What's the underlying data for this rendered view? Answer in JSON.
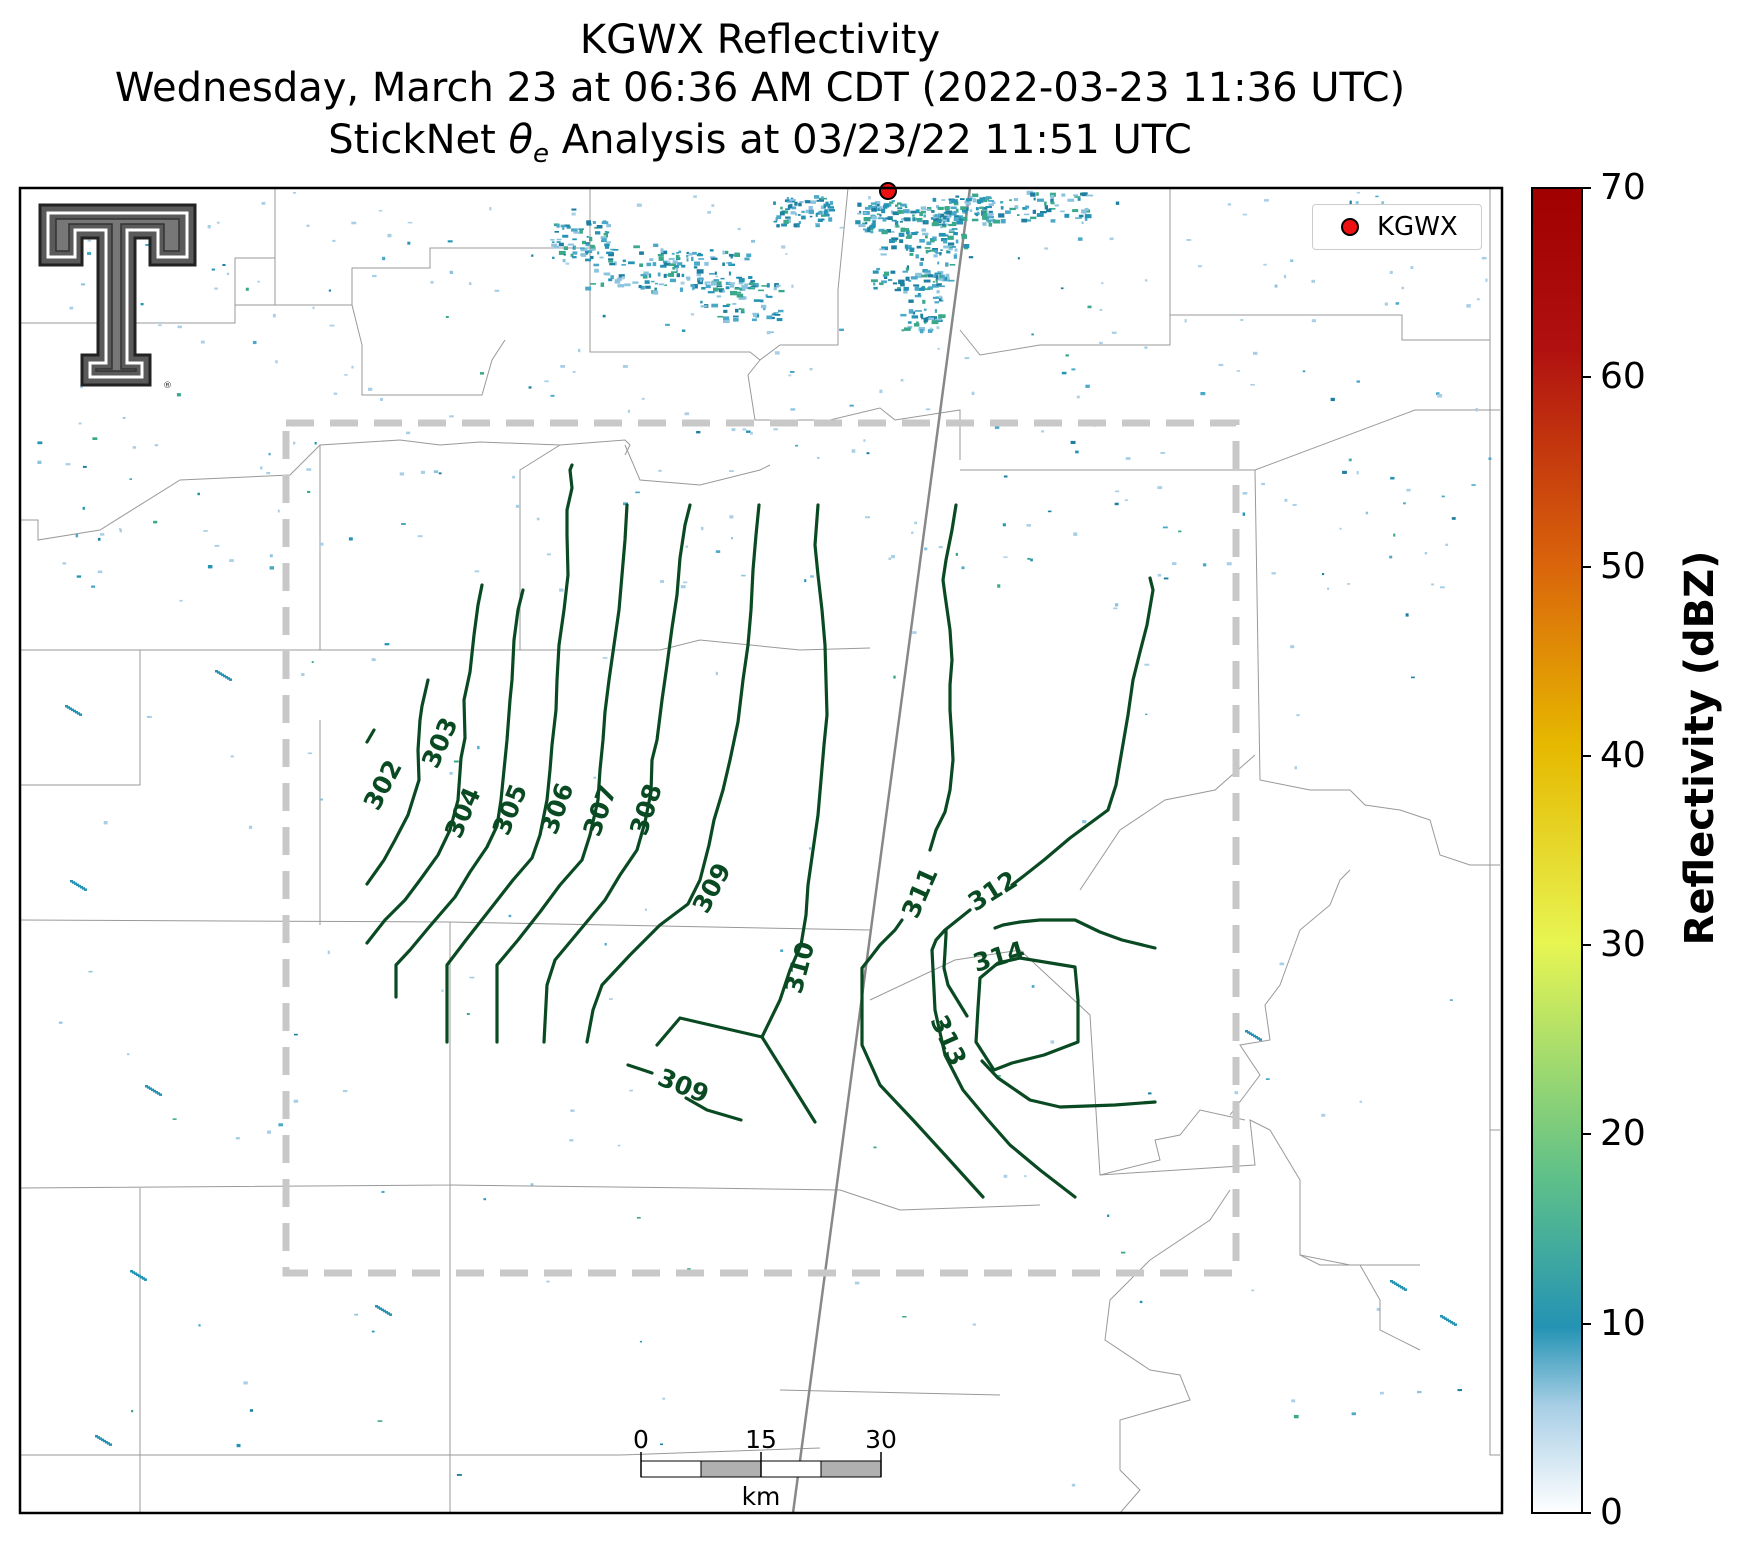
{
  "header": {
    "title_line1": "KGWX Reflectivity",
    "title_line2": "Wednesday, March 23 at 06:36 AM CDT (2022-03-23 11:36 UTC)",
    "title_line3_pre": "StickNet ",
    "title_line3_theta": "θ",
    "title_line3_sub": "e",
    "title_line3_post": " Analysis at 03/23/22 11:51 UTC"
  },
  "legend": {
    "marker_label": "KGWX",
    "marker_color": "#ee1111"
  },
  "colorbar": {
    "label": "Reflectivity (dBZ)",
    "ticks": [
      "0",
      "10",
      "20",
      "30",
      "40",
      "50",
      "60",
      "70"
    ],
    "colors": [
      "#ffffff",
      "#a9cfe6",
      "#2493b4",
      "#5cbf8a",
      "#e7f552",
      "#e6b800",
      "#d9620c",
      "#b01010",
      "#a00000"
    ]
  },
  "scale_bar": {
    "labels": [
      "0",
      "15",
      "30"
    ],
    "unit": "km"
  },
  "contours": {
    "color": "#0a4a22",
    "labels": [
      "302",
      "303",
      "304",
      "305",
      "306",
      "307",
      "308",
      "309",
      "310",
      "311",
      "312",
      "313",
      "314",
      "309"
    ]
  },
  "logo": {
    "name": "Texas Tech double-T logo"
  }
}
